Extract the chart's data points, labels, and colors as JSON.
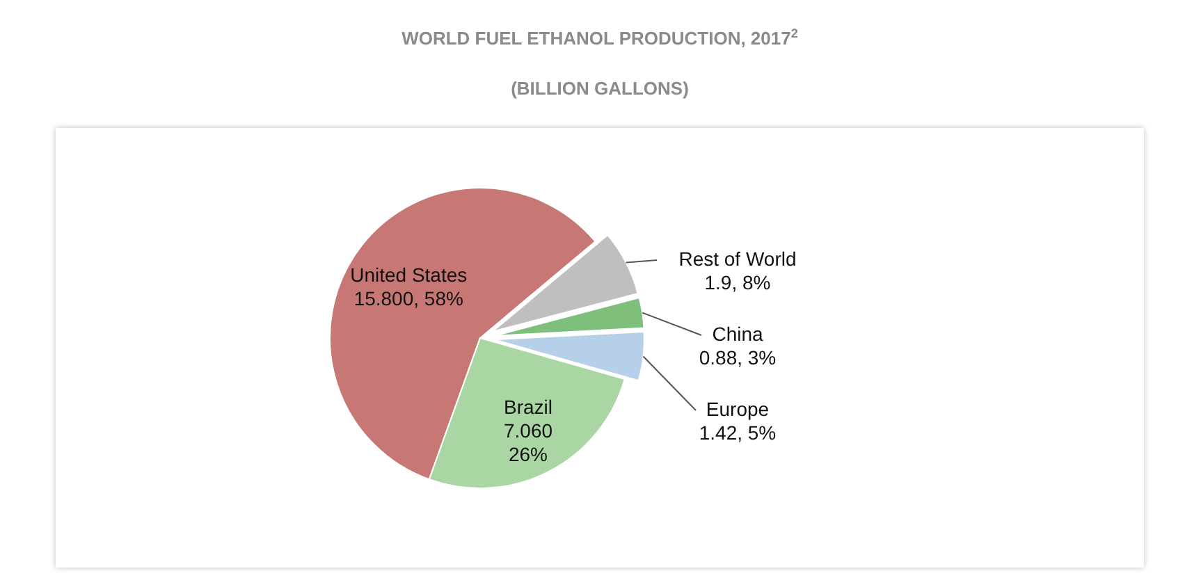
{
  "chart_data": {
    "type": "pie",
    "title": "WORLD FUEL ETHANOL PRODUCTION, 2017$^{2}$",
    "subtitle": "(BILLION GALLONS)",
    "categories": [
      "United States",
      "Brazil",
      "Europe",
      "China",
      "Rest of World"
    ],
    "values": [
      15.8,
      7.06,
      1.42,
      0.88,
      1.9
    ],
    "value_labels": [
      "15.800, 58%",
      "7.060\n26%",
      "1.42, 5%",
      "0.88, 3%",
      "1.9, 8%"
    ],
    "colors": [
      "#c77774",
      "#a9d6a3",
      "#b7d0ea",
      "#7dbf7b",
      "#c0bfbf"
    ]
  }
}
